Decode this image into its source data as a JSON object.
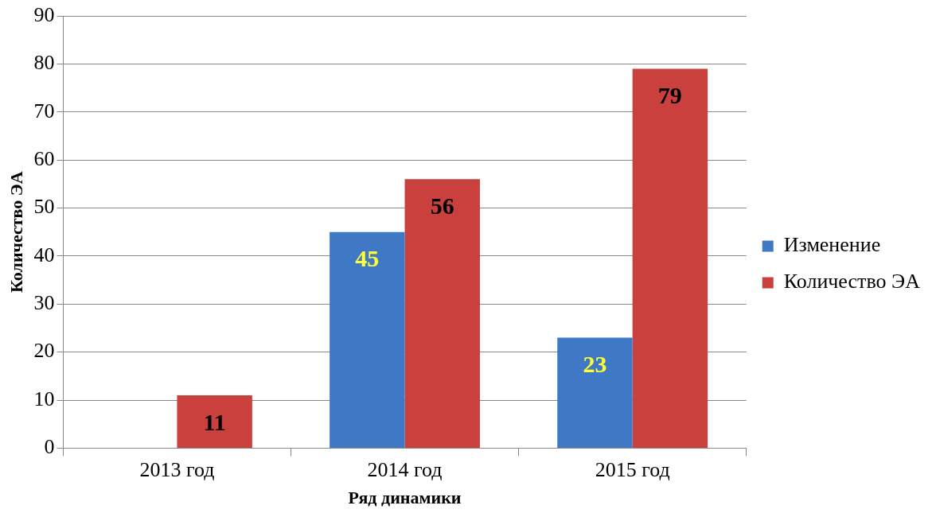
{
  "chart_data": {
    "type": "bar",
    "xlabel": "Ряд динамики",
    "ylabel": "Количество ЭА",
    "categories": [
      "2013 год",
      "2014 год",
      "2015 год"
    ],
    "series": [
      {
        "name": "Изменение",
        "color": "#3f78c4",
        "values": [
          null,
          45,
          23
        ]
      },
      {
        "name": "Количество ЭА",
        "color": "#c9403c",
        "values": [
          11,
          56,
          79
        ]
      }
    ],
    "ylim": [
      0,
      90
    ],
    "yticks": [
      0,
      10,
      20,
      30,
      40,
      50,
      60,
      70,
      80,
      90
    ],
    "grid": "y",
    "legend": "right",
    "data_labels": true
  }
}
